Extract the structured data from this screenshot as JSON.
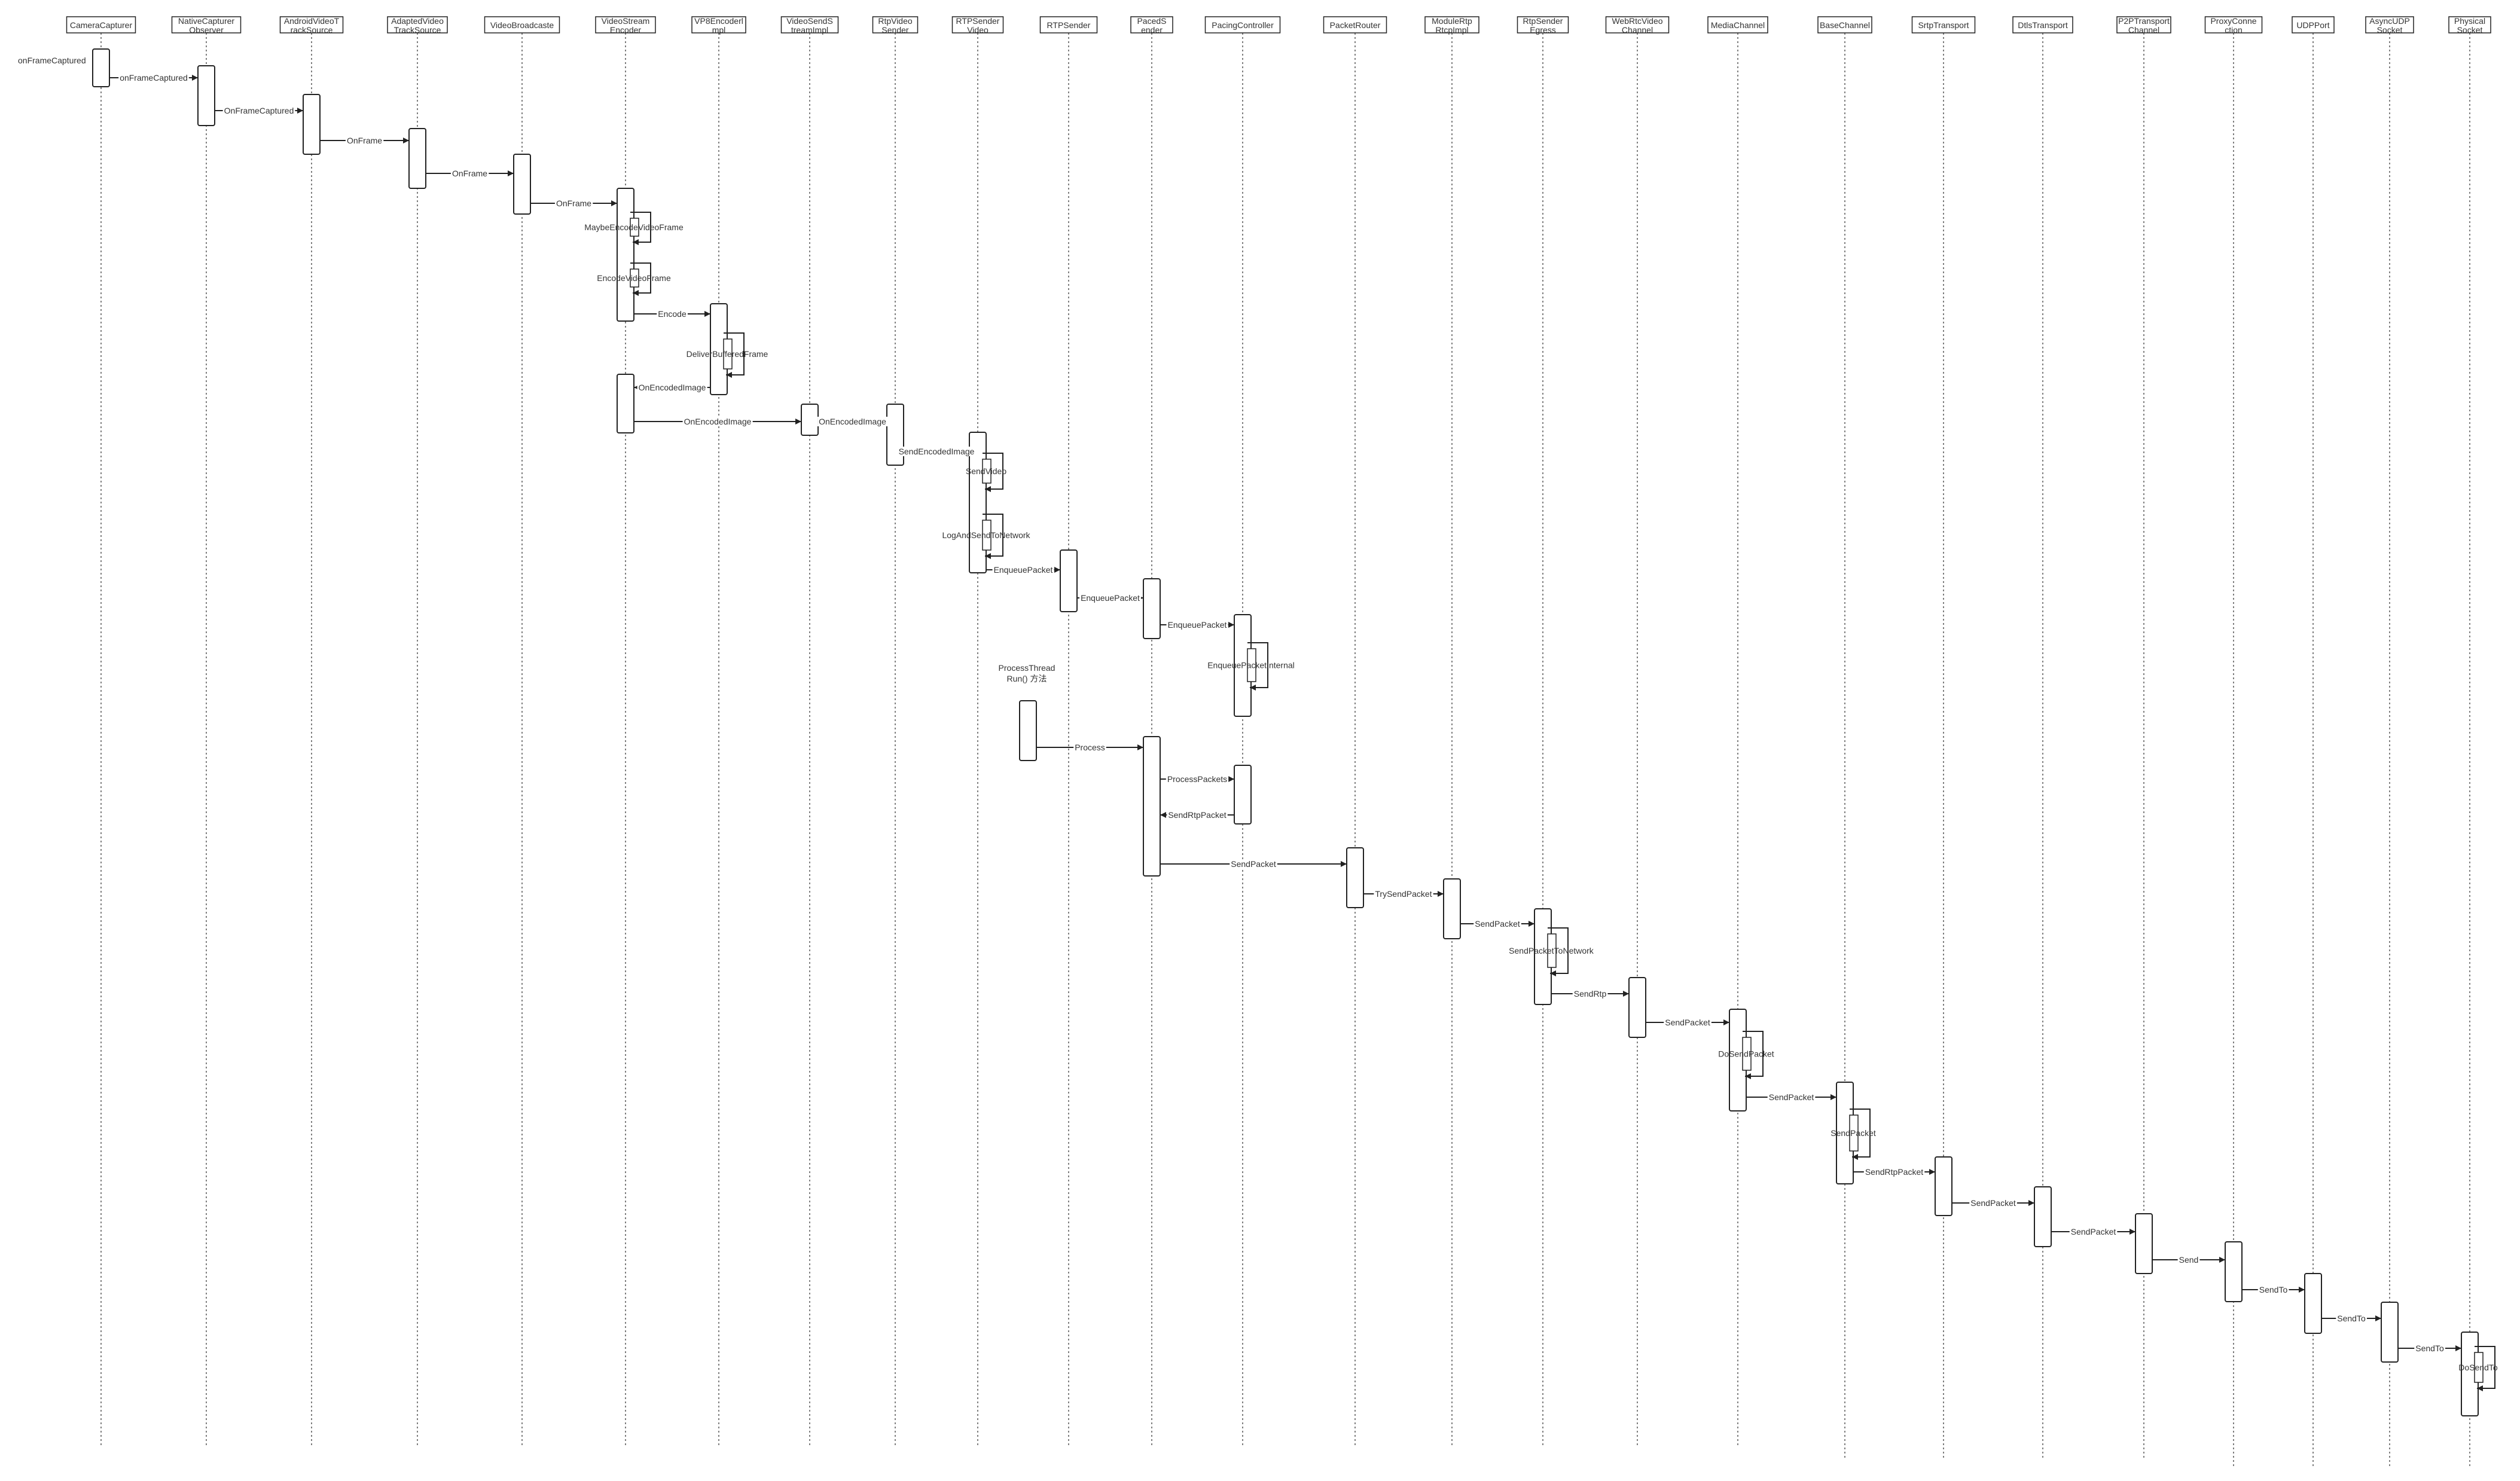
{
  "diagram": {
    "colors": {
      "line": "#222222",
      "lifeline": "#555555",
      "text": "#333333"
    },
    "participants": [
      {
        "id": "cameracapturer",
        "lines": [
          "CameraCapturer"
        ]
      },
      {
        "id": "nativecapturerobserver",
        "lines": [
          "NativeCapturer",
          "Observer"
        ]
      },
      {
        "id": "androidvideotracksource",
        "lines": [
          "AndroidVideoT",
          "rackSource"
        ]
      },
      {
        "id": "adaptedvideotracksource",
        "lines": [
          "AdaptedVideo",
          "TrackSource"
        ]
      },
      {
        "id": "videobroadcaster",
        "lines": [
          "VideoBroadcaste"
        ]
      },
      {
        "id": "videostreamencoder",
        "lines": [
          "VideoStream",
          "Encoder"
        ]
      },
      {
        "id": "vp8encoderimpl",
        "lines": [
          "VP8Encoderl",
          "mpl"
        ]
      },
      {
        "id": "videosendstreamimpl",
        "lines": [
          "VideoSendS",
          "treamImpl"
        ]
      },
      {
        "id": "rtpvideosender",
        "lines": [
          "RtpVideo",
          "Sender"
        ]
      },
      {
        "id": "rtpsendervideo",
        "lines": [
          "RTPSender",
          "Video"
        ]
      },
      {
        "id": "rtpsender",
        "lines": [
          "RTPSender"
        ]
      },
      {
        "id": "pacedsender",
        "lines": [
          "PacedS",
          "ender"
        ]
      },
      {
        "id": "pacingcontroller",
        "lines": [
          "PacingController"
        ]
      },
      {
        "id": "packetrouter",
        "lines": [
          "PacketRouter"
        ]
      },
      {
        "id": "modulertprtcpimpl",
        "lines": [
          "ModuleRtp",
          "RtcpImpl"
        ]
      },
      {
        "id": "rtpsenderegress",
        "lines": [
          "RtpSender",
          "Egress"
        ]
      },
      {
        "id": "webrtcvideochannel",
        "lines": [
          "WebRtcVideo",
          "Channel"
        ]
      },
      {
        "id": "mediachannel",
        "lines": [
          "MediaChannel"
        ]
      },
      {
        "id": "basechannel",
        "lines": [
          "BaseChannel"
        ]
      },
      {
        "id": "srtptransport",
        "lines": [
          "SrtpTransport"
        ]
      },
      {
        "id": "dtlstransport",
        "lines": [
          "DtlsTransport"
        ]
      },
      {
        "id": "p2ptransportchannel",
        "lines": [
          "P2PTransport",
          "Channel"
        ]
      },
      {
        "id": "proxyconnection",
        "lines": [
          "ProxyConne",
          "ction"
        ]
      },
      {
        "id": "udpport",
        "lines": [
          "UDPPort"
        ]
      },
      {
        "id": "asyncudpsocket",
        "lines": [
          "AsyncUDP",
          "Socket"
        ]
      },
      {
        "id": "physicalsocket",
        "lines": [
          "Physical",
          "Socket"
        ]
      }
    ],
    "entry_label": "onFrameCaptured",
    "note": {
      "lines": [
        "ProcessThread",
        "Run() 方法"
      ]
    },
    "messages": [
      {
        "from": 0,
        "to": 1,
        "label": "onFrameCaptured"
      },
      {
        "from": 1,
        "to": 2,
        "label": "OnFrameCaptured"
      },
      {
        "from": 2,
        "to": 3,
        "label": "OnFrame"
      },
      {
        "from": 3,
        "to": 4,
        "label": "OnFrame"
      },
      {
        "from": 4,
        "to": 5,
        "label": "OnFrame"
      },
      {
        "from": 5,
        "to": 5,
        "label": "MaybeEncodeVideoFrame"
      },
      {
        "from": 5,
        "to": 5,
        "label": "EncodeVideoFrame"
      },
      {
        "from": 5,
        "to": 6,
        "label": "Encode"
      },
      {
        "from": 6,
        "to": 6,
        "label": "DeliverBufferedFrame"
      },
      {
        "from": 6,
        "to": 5,
        "label": "OnEncodedImage"
      },
      {
        "from": 5,
        "to": 7,
        "label": "OnEncodedImage"
      },
      {
        "from": 7,
        "to": 8,
        "label": "OnEncodedImage"
      },
      {
        "from": 8,
        "to": 9,
        "label": "SendEncodedImage"
      },
      {
        "from": 9,
        "to": 9,
        "label": "SendVideo"
      },
      {
        "from": 9,
        "to": 9,
        "label": "LogAndSendToNetwork"
      },
      {
        "from": 9,
        "to": 10,
        "label": "EnqueuePacket"
      },
      {
        "from": 10,
        "to": 11,
        "label": "EnqueuePacket"
      },
      {
        "from": 11,
        "to": 12,
        "label": "EnqueuePacket"
      },
      {
        "from": 12,
        "to": 12,
        "label": "EnqueuePacketInternal"
      },
      {
        "from": "note",
        "to": 11,
        "label": "Process"
      },
      {
        "from": 11,
        "to": 12,
        "label": "ProcessPackets"
      },
      {
        "from": 12,
        "to": 11,
        "label": "SendRtpPacket"
      },
      {
        "from": 11,
        "to": 13,
        "label": "SendPacket"
      },
      {
        "from": 13,
        "to": 14,
        "label": "TrySendPacket"
      },
      {
        "from": 14,
        "to": 15,
        "label": "SendPacket"
      },
      {
        "from": 15,
        "to": 15,
        "label": "SendPacketToNetwork"
      },
      {
        "from": 15,
        "to": 16,
        "label": "SendRtp"
      },
      {
        "from": 16,
        "to": 17,
        "label": "SendPacket"
      },
      {
        "from": 17,
        "to": 17,
        "label": "DoSendPacket"
      },
      {
        "from": 17,
        "to": 18,
        "label": "SendPacket"
      },
      {
        "from": 18,
        "to": 18,
        "label": "SendPacket"
      },
      {
        "from": 18,
        "to": 19,
        "label": "SendRtpPacket"
      },
      {
        "from": 19,
        "to": 20,
        "label": "SendPacket"
      },
      {
        "from": 20,
        "to": 21,
        "label": "SendPacket"
      },
      {
        "from": 21,
        "to": 22,
        "label": "Send"
      },
      {
        "from": 22,
        "to": 23,
        "label": "SendTo"
      },
      {
        "from": 23,
        "to": 24,
        "label": "SendTo"
      },
      {
        "from": 24,
        "to": 25,
        "label": "SendTo"
      },
      {
        "from": 25,
        "to": 25,
        "label": "DoSendTo"
      }
    ]
  }
}
